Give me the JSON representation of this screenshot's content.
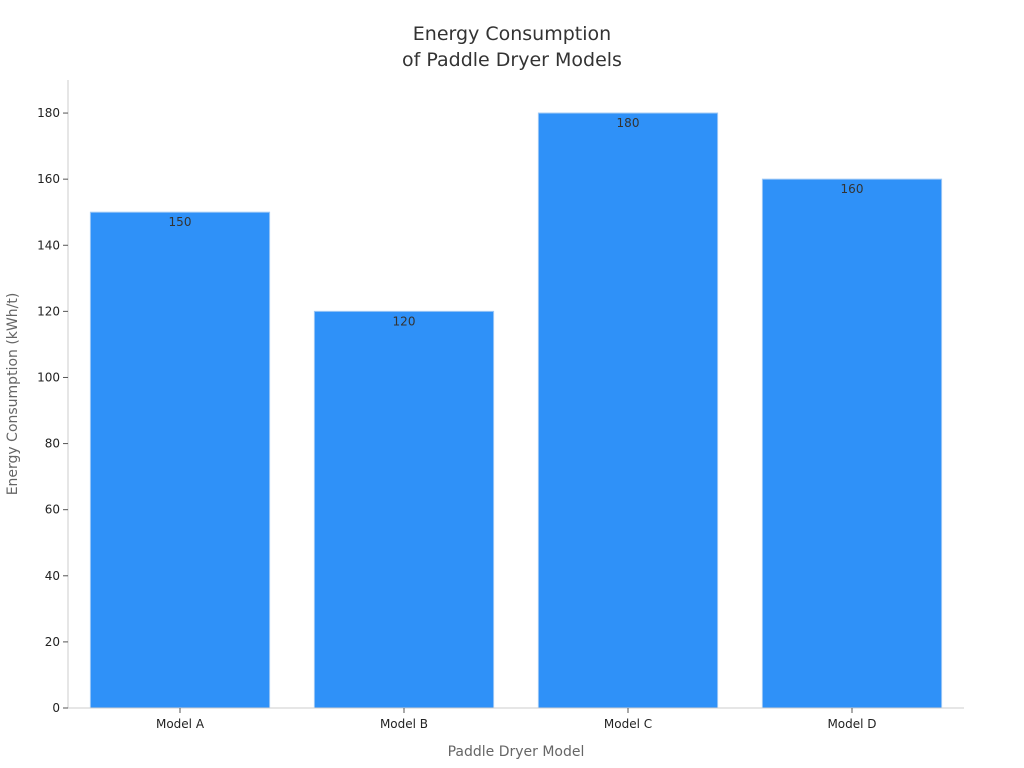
{
  "chart_data": {
    "type": "bar",
    "title_lines": [
      "Energy Consumption",
      "of Paddle Dryer Models"
    ],
    "xlabel": "Paddle Dryer Model",
    "ylabel": "Energy Consumption (kWh/t)",
    "categories": [
      "Model A",
      "Model B",
      "Model C",
      "Model D"
    ],
    "values": [
      150,
      120,
      180,
      160
    ],
    "ylim": [
      0,
      190
    ],
    "yticks": [
      0,
      20,
      40,
      60,
      80,
      100,
      120,
      140,
      160,
      180
    ],
    "bar_color": "#2f91f8",
    "grid": false,
    "legend": false,
    "data_labels": true
  }
}
